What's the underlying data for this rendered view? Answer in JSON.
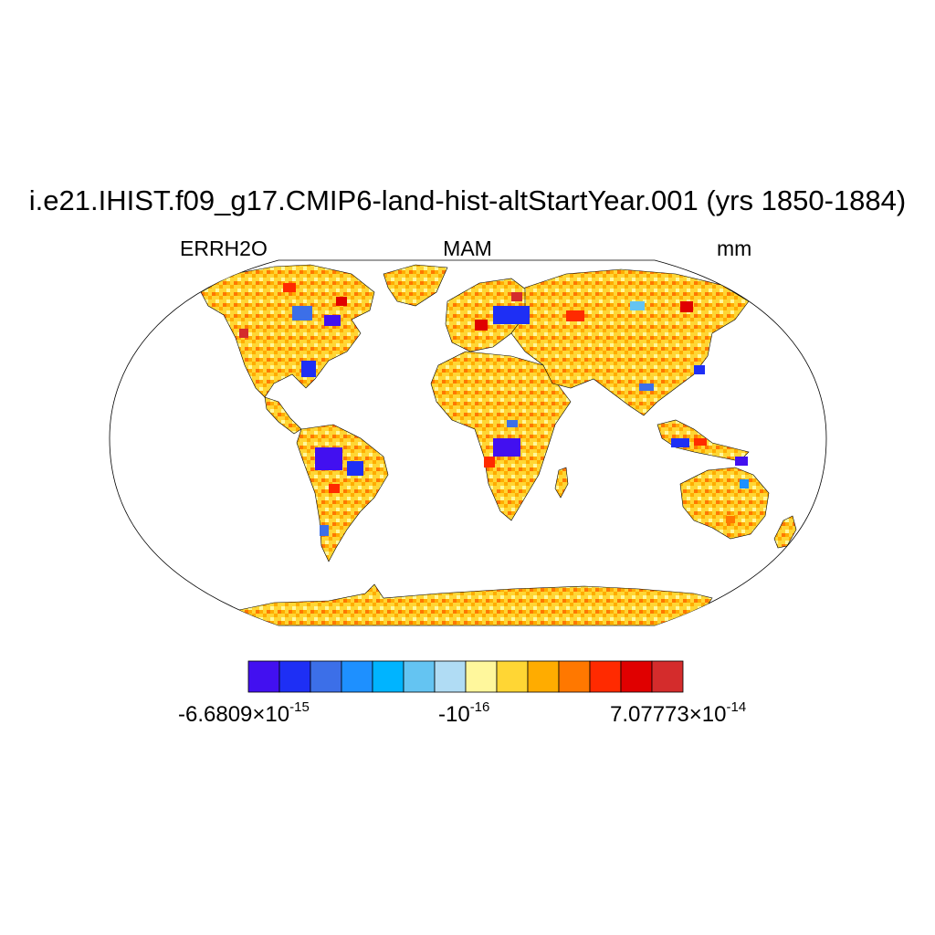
{
  "header": {
    "title": "i.e21.IHIST.f09_g17.CMIP6-land-hist-altStartYear.001 (yrs 1850-1884)",
    "variable": "ERRH2O",
    "season": "MAM",
    "units": "mm"
  },
  "colorbar": {
    "colors": [
      "#4210f0",
      "#1e2ff5",
      "#3c6fe8",
      "#1e90ff",
      "#00b4ff",
      "#64c4f2",
      "#b0dcf4",
      "#fff79c",
      "#ffd634",
      "#ffac00",
      "#ff7800",
      "#ff2a00",
      "#e00000",
      "#d42c2c"
    ],
    "min_label": {
      "mantissa": "-6.6809",
      "times": "×10",
      "exponent": "-15"
    },
    "mid_label": {
      "mantissa": "-10",
      "exponent": "-16"
    },
    "max_label": {
      "mantissa": "7.07773",
      "times": "×10",
      "exponent": "-14"
    }
  },
  "map": {
    "projection": "Robinson",
    "land_fill_dominant": "#ffd634",
    "ocean_fill": "#ffffff",
    "coastline_color": "#000000"
  }
}
